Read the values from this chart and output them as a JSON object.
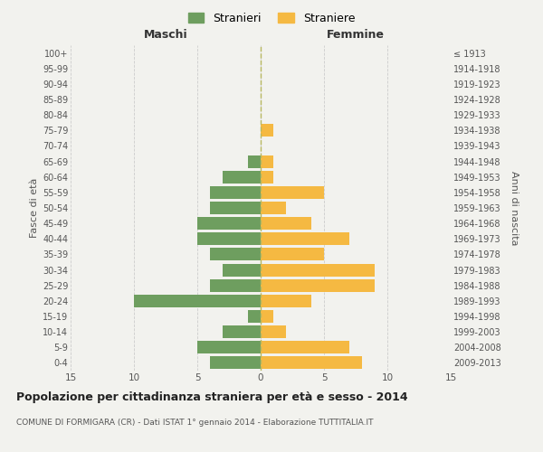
{
  "age_groups": [
    "0-4",
    "5-9",
    "10-14",
    "15-19",
    "20-24",
    "25-29",
    "30-34",
    "35-39",
    "40-44",
    "45-49",
    "50-54",
    "55-59",
    "60-64",
    "65-69",
    "70-74",
    "75-79",
    "80-84",
    "85-89",
    "90-94",
    "95-99",
    "100+"
  ],
  "birth_years": [
    "2009-2013",
    "2004-2008",
    "1999-2003",
    "1994-1998",
    "1989-1993",
    "1984-1988",
    "1979-1983",
    "1974-1978",
    "1969-1973",
    "1964-1968",
    "1959-1963",
    "1954-1958",
    "1949-1953",
    "1944-1948",
    "1939-1943",
    "1934-1938",
    "1929-1933",
    "1924-1928",
    "1919-1923",
    "1914-1918",
    "≤ 1913"
  ],
  "maschi": [
    4,
    5,
    3,
    1,
    10,
    4,
    3,
    4,
    5,
    5,
    4,
    4,
    3,
    1,
    0,
    0,
    0,
    0,
    0,
    0,
    0
  ],
  "femmine": [
    8,
    7,
    2,
    1,
    4,
    9,
    9,
    5,
    7,
    4,
    2,
    5,
    1,
    1,
    0,
    1,
    0,
    0,
    0,
    0,
    0
  ],
  "male_color": "#6e9e5f",
  "female_color": "#f5b942",
  "background_color": "#f2f2ee",
  "grid_color": "#cccccc",
  "title": "Popolazione per cittadinanza straniera per età e sesso - 2014",
  "subtitle": "COMUNE DI FORMIGARA (CR) - Dati ISTAT 1° gennaio 2014 - Elaborazione TUTTITALIA.IT",
  "ylabel_left": "Fasce di età",
  "ylabel_right": "Anni di nascita",
  "xlabel_maschi": "Maschi",
  "xlabel_femmine": "Femmine",
  "legend_maschi": "Stranieri",
  "legend_femmine": "Straniere",
  "xlim": 15,
  "dashed_line_color": "#b8b860"
}
